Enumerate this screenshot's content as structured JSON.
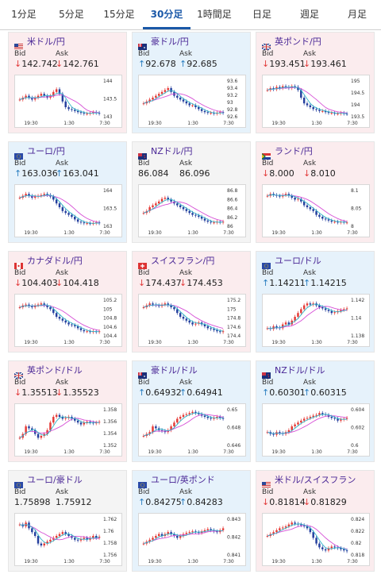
{
  "tabs": [
    {
      "label": "1分足",
      "active": false
    },
    {
      "label": "5分足",
      "active": false
    },
    {
      "label": "15分足",
      "active": false
    },
    {
      "label": "30分足",
      "active": true
    },
    {
      "label": "1時間足",
      "active": false
    },
    {
      "label": "日足",
      "active": false
    },
    {
      "label": "週足",
      "active": false
    },
    {
      "label": "月足",
      "active": false
    }
  ],
  "colors": {
    "down_arrow": "#e23b3b",
    "up_arrow": "#2a7fc1",
    "bull": "#e53935",
    "bear": "#243f9e",
    "ma_pink": "#d64fd6",
    "ma_cyan": "#30b3c8",
    "pair_name": "#4a2796",
    "tab_active": "#1a58a8"
  },
  "labels": {
    "bid": "Bid",
    "ask": "Ask"
  },
  "cards": [
    {
      "pair": "米ドル/円",
      "flag": "us",
      "trend": "down",
      "bid": "142.742",
      "ask": "142.761",
      "bid_dir": "down",
      "ask_dir": "down",
      "chart_data": {
        "type": "candlestick",
        "x_ticks": [
          "19:30",
          "1:30",
          "7:30"
        ],
        "y_ticks": [
          "144",
          "143.5",
          "143"
        ],
        "ylim": [
          142.6,
          144.3
        ],
        "shape": [
          0.45,
          0.5,
          0.55,
          0.5,
          0.45,
          0.5,
          0.55,
          0.6,
          0.55,
          0.5,
          0.55,
          0.65,
          0.72,
          0.6,
          0.4,
          0.25,
          0.2,
          0.18,
          0.15,
          0.12,
          0.1,
          0.08,
          0.08,
          0.1,
          0.12,
          0.1,
          0.08
        ]
      }
    },
    {
      "pair": "豪ドル/円",
      "flag": "au",
      "trend": "up",
      "bid": "92.678",
      "ask": "92.685",
      "bid_dir": "up",
      "ask_dir": "up",
      "chart_data": {
        "type": "candlestick",
        "x_ticks": [
          "19:30",
          "1:30",
          "7:30"
        ],
        "y_ticks": [
          "93.6",
          "93.4",
          "93.2",
          "93",
          "92.8",
          "92.6"
        ],
        "ylim": [
          92.55,
          93.7
        ],
        "shape": [
          0.35,
          0.4,
          0.45,
          0.5,
          0.55,
          0.6,
          0.65,
          0.7,
          0.75,
          0.65,
          0.55,
          0.5,
          0.45,
          0.4,
          0.35,
          0.3,
          0.3,
          0.25,
          0.2,
          0.15,
          0.12,
          0.1,
          0.1,
          0.08,
          0.1,
          0.12,
          0.1
        ]
      }
    },
    {
      "pair": "英ポンド/円",
      "flag": "gb",
      "trend": "down",
      "bid": "193.451",
      "ask": "193.461",
      "bid_dir": "down",
      "ask_dir": "down",
      "chart_data": {
        "type": "candlestick",
        "x_ticks": [
          "19:30",
          "1:30",
          "7:30"
        ],
        "y_ticks": [
          "195",
          "194.5",
          "194",
          "193.5"
        ],
        "ylim": [
          193.3,
          195.3
        ],
        "shape": [
          0.7,
          0.75,
          0.72,
          0.78,
          0.75,
          0.8,
          0.78,
          0.75,
          0.8,
          0.78,
          0.7,
          0.5,
          0.35,
          0.3,
          0.25,
          0.2,
          0.18,
          0.15,
          0.15,
          0.12,
          0.1,
          0.1,
          0.08,
          0.08,
          0.1,
          0.08,
          0.07
        ]
      }
    },
    {
      "pair": "ユーロ/円",
      "flag": "eu",
      "trend": "up",
      "bid": "163.036",
      "ask": "163.041",
      "bid_dir": "up",
      "ask_dir": "up",
      "chart_data": {
        "type": "candlestick",
        "x_ticks": [
          "19:30",
          "1:30",
          "7:30"
        ],
        "y_ticks": [
          "164",
          "163.5",
          "163"
        ],
        "ylim": [
          162.9,
          164.2
        ],
        "shape": [
          0.75,
          0.8,
          0.85,
          0.8,
          0.75,
          0.78,
          0.8,
          0.82,
          0.85,
          0.82,
          0.78,
          0.7,
          0.6,
          0.5,
          0.4,
          0.35,
          0.3,
          0.25,
          0.18,
          0.12,
          0.1,
          0.08,
          0.08,
          0.07,
          0.08,
          0.1,
          0.08
        ]
      }
    },
    {
      "pair": "NZドル/円",
      "flag": "nz",
      "trend": "flat",
      "bid": "86.084",
      "ask": "86.096",
      "bid_dir": "none",
      "ask_dir": "none",
      "chart_data": {
        "type": "candlestick",
        "x_ticks": [
          "19:30",
          "1:30",
          "7:30"
        ],
        "y_ticks": [
          "86.8",
          "86.6",
          "86.4",
          "86.2",
          "86"
        ],
        "ylim": [
          85.95,
          86.9
        ],
        "shape": [
          0.35,
          0.4,
          0.5,
          0.55,
          0.6,
          0.65,
          0.72,
          0.75,
          0.7,
          0.65,
          0.6,
          0.55,
          0.5,
          0.45,
          0.4,
          0.35,
          0.3,
          0.28,
          0.25,
          0.2,
          0.15,
          0.12,
          0.1,
          0.1,
          0.12,
          0.1,
          0.12
        ]
      }
    },
    {
      "pair": "ランド/円",
      "flag": "za",
      "trend": "down",
      "bid": "8.000",
      "ask": "8.010",
      "bid_dir": "down",
      "ask_dir": "down",
      "chart_data": {
        "type": "candlestick",
        "x_ticks": [
          "19:30",
          "1:30",
          "7:30"
        ],
        "y_ticks": [
          "8.1",
          "8.05",
          "8"
        ],
        "ylim": [
          7.99,
          8.11
        ],
        "shape": [
          0.8,
          0.85,
          0.82,
          0.8,
          0.78,
          0.82,
          0.85,
          0.8,
          0.75,
          0.7,
          0.72,
          0.65,
          0.55,
          0.5,
          0.45,
          0.4,
          0.3,
          0.25,
          0.2,
          0.18,
          0.15,
          0.12,
          0.12,
          0.1,
          0.12,
          0.1,
          0.1
        ]
      }
    },
    {
      "pair": "カナダドル/円",
      "flag": "ca",
      "trend": "down",
      "bid": "104.403",
      "ask": "104.418",
      "bid_dir": "down",
      "ask_dir": "down",
      "chart_data": {
        "type": "candlestick",
        "x_ticks": [
          "19:30",
          "1:30",
          "7:30"
        ],
        "y_ticks": [
          "105.2",
          "105",
          "104.8",
          "104.6",
          "104.4"
        ],
        "ylim": [
          104.3,
          105.3
        ],
        "shape": [
          0.75,
          0.8,
          0.82,
          0.78,
          0.75,
          0.8,
          0.82,
          0.85,
          0.8,
          0.75,
          0.7,
          0.6,
          0.5,
          0.45,
          0.4,
          0.35,
          0.3,
          0.28,
          0.25,
          0.2,
          0.15,
          0.12,
          0.12,
          0.1,
          0.12,
          0.1,
          0.12
        ]
      }
    },
    {
      "pair": "スイスフラン/円",
      "flag": "ch",
      "trend": "down",
      "bid": "174.437",
      "ask": "174.453",
      "bid_dir": "down",
      "ask_dir": "down",
      "chart_data": {
        "type": "candlestick",
        "x_ticks": [
          "19:30",
          "1:30",
          "7:30"
        ],
        "y_ticks": [
          "175.2",
          "175",
          "174.8",
          "174.6",
          "174.4"
        ],
        "ylim": [
          174.3,
          175.3
        ],
        "shape": [
          0.75,
          0.8,
          0.85,
          0.82,
          0.8,
          0.78,
          0.82,
          0.85,
          0.8,
          0.75,
          0.7,
          0.6,
          0.5,
          0.45,
          0.4,
          0.35,
          0.3,
          0.32,
          0.35,
          0.3,
          0.25,
          0.2,
          0.18,
          0.15,
          0.12,
          0.1,
          0.12
        ]
      }
    },
    {
      "pair": "ユーロ/ドル",
      "flag": "eu",
      "trend": "up",
      "bid": "1.14211",
      "ask": "1.14215",
      "bid_dir": "up",
      "ask_dir": "up",
      "chart_data": {
        "type": "candlestick",
        "x_ticks": [
          "19:30",
          "1:30",
          "7:30"
        ],
        "y_ticks": [
          "1.142",
          "1.14",
          "1.138"
        ],
        "ylim": [
          1.137,
          1.1435
        ],
        "shape": [
          0.2,
          0.18,
          0.25,
          0.22,
          0.2,
          0.3,
          0.35,
          0.3,
          0.4,
          0.5,
          0.6,
          0.7,
          0.8,
          0.85,
          0.82,
          0.85,
          0.8,
          0.75,
          0.72,
          0.68,
          0.65,
          0.6,
          0.62,
          0.65,
          0.68,
          0.7,
          0.72
        ]
      }
    },
    {
      "pair": "英ポンド/ドル",
      "flag": "gb",
      "trend": "down",
      "bid": "1.35513",
      "ask": "1.35523",
      "bid_dir": "down",
      "ask_dir": "down",
      "chart_data": {
        "type": "candlestick",
        "x_ticks": [
          "19:30",
          "1:30",
          "7:30"
        ],
        "y_ticks": [
          "1.358",
          "1.356",
          "1.354",
          "1.352"
        ],
        "ylim": [
          1.351,
          1.359
        ],
        "shape": [
          0.2,
          0.3,
          0.5,
          0.45,
          0.4,
          0.3,
          0.2,
          0.25,
          0.3,
          0.4,
          0.6,
          0.75,
          0.8,
          0.75,
          0.7,
          0.72,
          0.75,
          0.7,
          0.65,
          0.6,
          0.55,
          0.6,
          0.62,
          0.6,
          0.58,
          0.6,
          0.62
        ]
      }
    },
    {
      "pair": "豪ドル/ドル",
      "flag": "au",
      "trend": "up",
      "bid": "0.64932",
      "ask": "0.64941",
      "bid_dir": "up",
      "ask_dir": "up",
      "chart_data": {
        "type": "candlestick",
        "x_ticks": [
          "19:30",
          "1:30",
          "7:30"
        ],
        "y_ticks": [
          "0.65",
          "0.648",
          "0.646"
        ],
        "ylim": [
          0.6452,
          0.6508
        ],
        "shape": [
          0.25,
          0.3,
          0.35,
          0.5,
          0.45,
          0.4,
          0.38,
          0.35,
          0.4,
          0.5,
          0.6,
          0.7,
          0.75,
          0.8,
          0.82,
          0.85,
          0.88,
          0.85,
          0.82,
          0.78,
          0.75,
          0.72,
          0.7,
          0.72,
          0.75,
          0.72,
          0.7
        ]
      }
    },
    {
      "pair": "NZドル/ドル",
      "flag": "nz",
      "trend": "up",
      "bid": "0.60301",
      "ask": "0.60315",
      "bid_dir": "up",
      "ask_dir": "up",
      "chart_data": {
        "type": "candlestick",
        "x_ticks": [
          "19:30",
          "1:30",
          "7:30"
        ],
        "y_ticks": [
          "0.604",
          "0.602",
          "0.6"
        ],
        "ylim": [
          0.5995,
          0.6045
        ],
        "shape": [
          0.35,
          0.3,
          0.28,
          0.35,
          0.32,
          0.3,
          0.35,
          0.4,
          0.5,
          0.55,
          0.6,
          0.65,
          0.7,
          0.72,
          0.75,
          0.78,
          0.8,
          0.85,
          0.82,
          0.8,
          0.75,
          0.72,
          0.7,
          0.65,
          0.68,
          0.7,
          0.72
        ]
      }
    },
    {
      "pair": "ユーロ/豪ドル",
      "flag": "eu",
      "trend": "flat",
      "bid": "1.75898",
      "ask": "1.75912",
      "bid_dir": "none",
      "ask_dir": "none",
      "chart_data": {
        "type": "candlestick",
        "x_ticks": [
          "19:30",
          "1:30",
          "7:30"
        ],
        "y_ticks": [
          "1.762",
          "1.76",
          "1.758",
          "1.756"
        ],
        "ylim": [
          1.7552,
          1.7628
        ],
        "shape": [
          0.8,
          0.75,
          0.85,
          0.7,
          0.6,
          0.5,
          0.3,
          0.25,
          0.3,
          0.35,
          0.4,
          0.45,
          0.5,
          0.55,
          0.6,
          0.55,
          0.5,
          0.45,
          0.4,
          0.38,
          0.42,
          0.45,
          0.4,
          0.45,
          0.5,
          0.45,
          0.48
        ]
      }
    },
    {
      "pair": "ユーロ/英ポンド",
      "flag": "eu",
      "trend": "up",
      "bid": "0.84275",
      "ask": "0.84283",
      "bid_dir": "up",
      "ask_dir": "up",
      "chart_data": {
        "type": "candlestick",
        "x_ticks": [
          "19:30",
          "1:30",
          "7:30"
        ],
        "y_ticks": [
          "0.843",
          "0.842",
          "0.841"
        ],
        "ylim": [
          0.8405,
          0.8435
        ],
        "shape": [
          0.3,
          0.35,
          0.4,
          0.45,
          0.5,
          0.55,
          0.5,
          0.55,
          0.6,
          0.55,
          0.5,
          0.45,
          0.5,
          0.55,
          0.58,
          0.6,
          0.62,
          0.6,
          0.58,
          0.62,
          0.65,
          0.68,
          0.65,
          0.62,
          0.6,
          0.65,
          0.7
        ]
      }
    },
    {
      "pair": "米ドル/スイスフラン",
      "flag": "us",
      "trend": "down",
      "bid": "0.81814",
      "ask": "0.81829",
      "bid_dir": "down",
      "ask_dir": "down",
      "chart_data": {
        "type": "candlestick",
        "x_ticks": [
          "19:30",
          "1:30",
          "7:30"
        ],
        "y_ticks": [
          "0.824",
          "0.822",
          "0.82",
          "0.818"
        ],
        "ylim": [
          0.8172,
          0.8248
        ],
        "shape": [
          0.5,
          0.55,
          0.6,
          0.65,
          0.7,
          0.72,
          0.75,
          0.8,
          0.85,
          0.82,
          0.8,
          0.78,
          0.75,
          0.7,
          0.6,
          0.45,
          0.3,
          0.2,
          0.15,
          0.12,
          0.18,
          0.22,
          0.2,
          0.18,
          0.15,
          0.12,
          0.1
        ]
      }
    }
  ]
}
